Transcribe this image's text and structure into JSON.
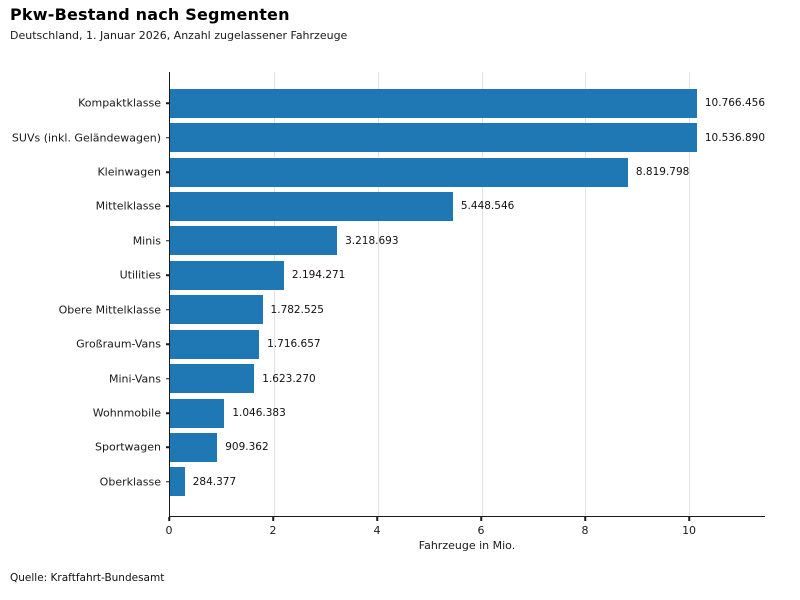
{
  "header": {
    "title": "Pkw-Bestand nach Segmenten",
    "subtitle": "Deutschland, 1. Januar 2026, Anzahl zugelassener Fahrzeuge"
  },
  "footer": {
    "source": "Quelle: Kraftfahrt-Bundesamt"
  },
  "chart_data": {
    "type": "bar",
    "orientation": "horizontal",
    "title": "Pkw-Bestand nach Segmenten",
    "subtitle": "Deutschland, 1. Januar 2026, Anzahl zugelassener Fahrzeuge",
    "xlabel": "Fahrzeuge in Mio.",
    "ylabel": "",
    "categories": [
      "Kompaktklasse",
      "SUVs (inkl. Geländewagen)",
      "Kleinwagen",
      "Mittelklasse",
      "Minis",
      "Utilities",
      "Obere Mittelklasse",
      "Großraum-Vans",
      "Mini-Vans",
      "Wohnmobile",
      "Sportwagen",
      "Oberklasse"
    ],
    "values": [
      10766456,
      10536890,
      8819798,
      5448546,
      3218693,
      2194271,
      1782525,
      1716657,
      1623270,
      1046383,
      909362,
      284377
    ],
    "value_labels": [
      "10.766.456",
      "10.536.890",
      "8.819.798",
      "5.448.546",
      "3.218.693",
      "2.194.271",
      "1.782.525",
      "1.716.657",
      "1.623.270",
      "1.046.383",
      "909.362",
      "284.377"
    ],
    "xticks": [
      0,
      2,
      4,
      6,
      8,
      10
    ],
    "xlim": [
      0,
      11.46
    ],
    "unit_divisor": 1000000,
    "grid": "vertical-only",
    "legend": "none",
    "bar_color": "#1f77b4",
    "gridline_color": "#e2e2e2",
    "axis_color": "#1a1a1a",
    "source": "Quelle: Kraftfahrt-Bundesamt"
  }
}
